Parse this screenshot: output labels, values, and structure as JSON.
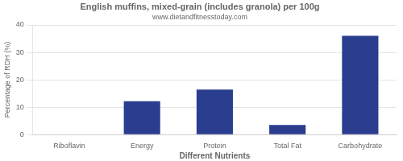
{
  "chart_data": {
    "type": "bar",
    "title": "English muffins, mixed-grain (includes granola) per 100g",
    "subtitle": "www.dietandfitnesstoday.com",
    "xlabel": "Different Nutrients",
    "ylabel": "Percentage of RDH (%)",
    "categories": [
      "Riboflavin",
      "Energy",
      "Protein",
      "Total Fat",
      "Carbohydrate"
    ],
    "values": [
      0,
      12.2,
      16.4,
      3.5,
      36.0
    ],
    "color": "#2B3D8F",
    "ylim": [
      0,
      40
    ],
    "yticks": [
      0,
      10,
      20,
      30,
      40
    ],
    "grid": true
  }
}
